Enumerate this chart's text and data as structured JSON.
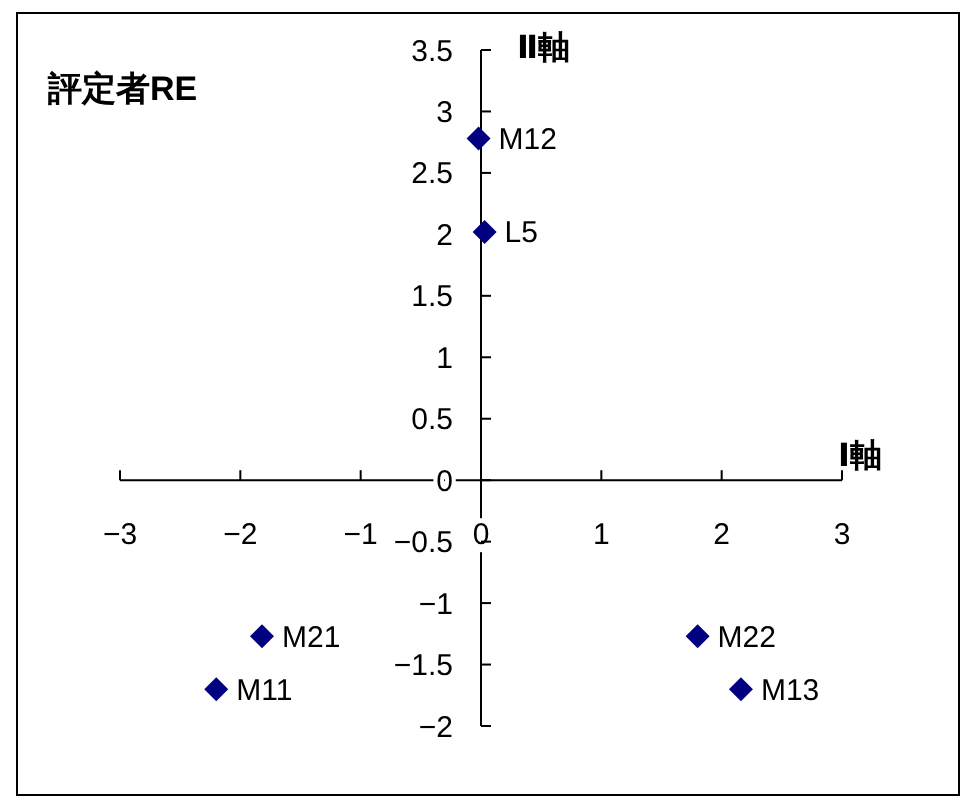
{
  "chart_data": {
    "type": "scatter",
    "title": "評定者RE",
    "xlabel": "Ⅰ軸",
    "ylabel": "Ⅱ軸",
    "x": [
      -2.2,
      -0.02,
      2.16,
      -1.82,
      1.8,
      0.03
    ],
    "series": [
      {
        "color": "#000080",
        "values": [
          -1.7,
          2.78,
          -1.7,
          -1.27,
          -1.27,
          2.02
        ]
      }
    ],
    "annotations": [
      {
        "text": "M11",
        "x": -2.2,
        "y": -1.7
      },
      {
        "text": "M12",
        "x": -0.02,
        "y": 2.78
      },
      {
        "text": "M13",
        "x": 2.16,
        "y": -1.7
      },
      {
        "text": "M21",
        "x": -1.82,
        "y": -1.27
      },
      {
        "text": "M22",
        "x": 1.8,
        "y": -1.27
      },
      {
        "text": "L5",
        "x": 0.03,
        "y": 2.02
      }
    ],
    "xlim": [
      -3,
      3
    ],
    "xticks": [
      -3,
      -2,
      -1,
      0,
      1,
      2,
      3
    ],
    "ylim": [
      -2,
      3.5
    ],
    "yticks": [
      -2,
      -1.5,
      -1,
      -0.5,
      0,
      0.5,
      1,
      1.5,
      2,
      2.5,
      3,
      3.5
    ],
    "marker": "diamond",
    "grid": false
  }
}
